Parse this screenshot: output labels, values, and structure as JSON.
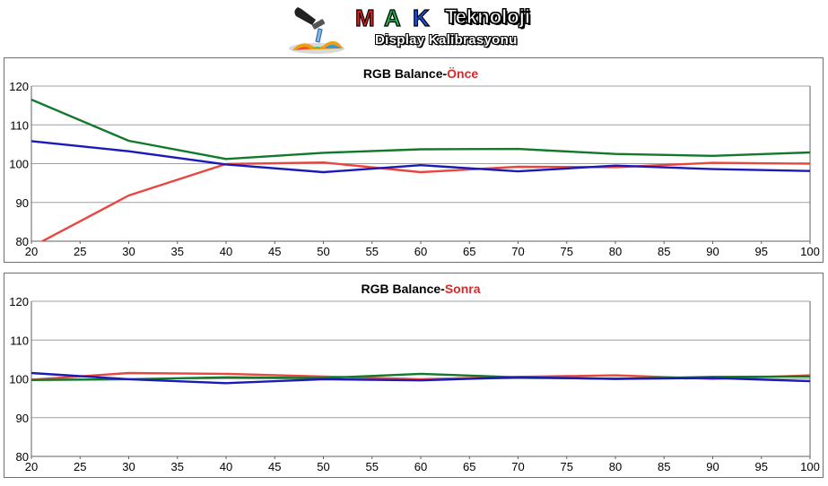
{
  "header": {
    "brand_letters": [
      {
        "char": "M",
        "color": "#e0201a"
      },
      {
        "char": "A",
        "color": "#22b14c"
      },
      {
        "char": "K",
        "color": "#1c4fd8"
      }
    ],
    "brand_name": "Teknoloji",
    "subtitle": "Display Kalibrasyonu",
    "logo_icon": "dropper-icon"
  },
  "colors": {
    "red": "#e8473f",
    "green": "#117a2a",
    "blue": "#1a1ab8",
    "title_accent": "#d62b2b"
  },
  "chart_data": [
    {
      "type": "line",
      "title_prefix": "RGB Balance-",
      "title_suffix": "Önce",
      "x": [
        20,
        30,
        40,
        50,
        60,
        70,
        80,
        90,
        100
      ],
      "xlim": [
        20,
        100
      ],
      "ylim": [
        80,
        120
      ],
      "xticks": [
        20,
        25,
        30,
        35,
        40,
        45,
        50,
        55,
        60,
        65,
        70,
        75,
        80,
        85,
        90,
        95,
        100
      ],
      "yticks": [
        80,
        90,
        100,
        110,
        120
      ],
      "grid": true,
      "series": [
        {
          "color": "red",
          "values": [
            78.5,
            91.8,
            99.9,
            100.3,
            97.8,
            99.2,
            99.1,
            100.2,
            100.0
          ]
        },
        {
          "color": "green",
          "values": [
            116.5,
            105.9,
            101.2,
            102.8,
            103.7,
            103.8,
            102.5,
            102.0,
            102.9
          ]
        },
        {
          "color": "blue",
          "values": [
            105.8,
            103.2,
            99.8,
            97.8,
            99.6,
            98.0,
            99.5,
            98.6,
            98.1
          ]
        }
      ]
    },
    {
      "type": "line",
      "title_prefix": "RGB Balance-",
      "title_suffix": "Sonra",
      "x": [
        20,
        30,
        40,
        50,
        60,
        70,
        80,
        90,
        100
      ],
      "xlim": [
        20,
        100
      ],
      "ylim": [
        80,
        120
      ],
      "xticks": [
        20,
        25,
        30,
        35,
        40,
        45,
        50,
        55,
        60,
        65,
        70,
        75,
        80,
        85,
        90,
        95,
        100
      ],
      "yticks": [
        80,
        90,
        100,
        110,
        120
      ],
      "grid": true,
      "series": [
        {
          "color": "red",
          "values": [
            99.8,
            101.5,
            101.3,
            100.6,
            99.9,
            100.5,
            100.9,
            100.0,
            100.9
          ]
        },
        {
          "color": "green",
          "values": [
            99.7,
            99.9,
            100.4,
            100.2,
            101.3,
            100.4,
            100.0,
            100.5,
            100.6
          ]
        },
        {
          "color": "blue",
          "values": [
            101.5,
            99.9,
            98.9,
            99.9,
            99.6,
            100.4,
            100.0,
            100.2,
            99.4
          ]
        }
      ]
    }
  ]
}
